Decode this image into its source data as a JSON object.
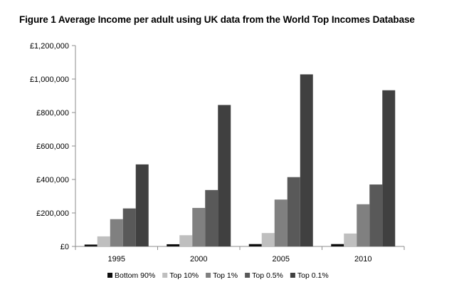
{
  "title": "Figure 1 Average Income per adult using UK data from the World Top Incomes Database",
  "chart_data": {
    "type": "bar",
    "title": "Figure 1 Average Income per adult using UK data from the World Top Incomes Database",
    "categories": [
      "1995",
      "2000",
      "2005",
      "2010"
    ],
    "series": [
      {
        "name": "Bottom 90%",
        "color": "#0d0d0d",
        "values": [
          11000,
          13000,
          14000,
          14000
        ]
      },
      {
        "name": "Top 10%",
        "color": "#bfbfbf",
        "values": [
          60000,
          67000,
          80000,
          77000
        ]
      },
      {
        "name": "Top 1%",
        "color": "#808080",
        "values": [
          163000,
          230000,
          280000,
          252000
        ]
      },
      {
        "name": "Top 0.5%",
        "color": "#595959",
        "values": [
          227000,
          337000,
          414000,
          370000
        ]
      },
      {
        "name": "Top 0.1%",
        "color": "#404040",
        "values": [
          490000,
          845000,
          1028000,
          933000
        ]
      }
    ],
    "ylim": [
      0,
      1200000
    ],
    "yticks": [
      0,
      200000,
      400000,
      600000,
      800000,
      1000000,
      1200000
    ],
    "ytick_labels": [
      "£0",
      "£200,000",
      "£400,000",
      "£600,000",
      "£800,000",
      "£1,000,000",
      "£1,200,000"
    ],
    "xlabel": "",
    "ylabel": "",
    "grid": false,
    "legend_position": "bottom"
  }
}
